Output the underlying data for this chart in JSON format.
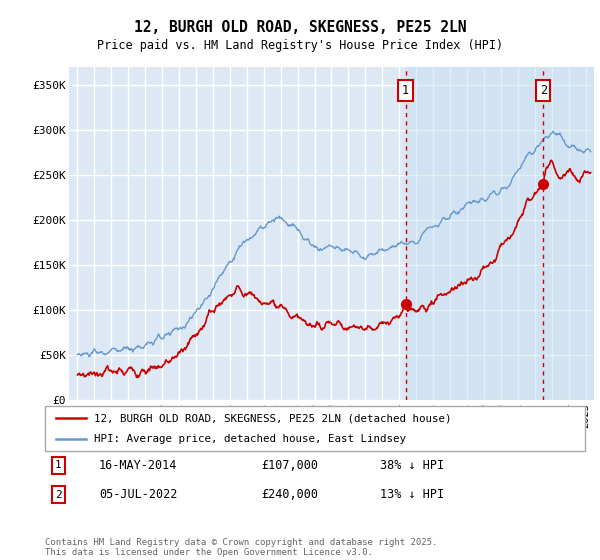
{
  "title": "12, BURGH OLD ROAD, SKEGNESS, PE25 2LN",
  "subtitle": "Price paid vs. HM Land Registry's House Price Index (HPI)",
  "ylabel_ticks": [
    "£0",
    "£50K",
    "£100K",
    "£150K",
    "£200K",
    "£250K",
    "£300K",
    "£350K"
  ],
  "ytick_values": [
    0,
    50000,
    100000,
    150000,
    200000,
    250000,
    300000,
    350000
  ],
  "ylim": [
    0,
    370000
  ],
  "xlim_start": 1994.5,
  "xlim_end": 2025.5,
  "transaction1": {
    "date_label": "16-MAY-2014",
    "price": 107000,
    "year": 2014.37,
    "label": "1",
    "pct": "38% ↓ HPI"
  },
  "transaction2": {
    "date_label": "05-JUL-2022",
    "price": 240000,
    "year": 2022.51,
    "label": "2",
    "pct": "13% ↓ HPI"
  },
  "legend_line1": "12, BURGH OLD ROAD, SKEGNESS, PE25 2LN (detached house)",
  "legend_line2": "HPI: Average price, detached house, East Lindsey",
  "footer": "Contains HM Land Registry data © Crown copyright and database right 2025.\nThis data is licensed under the Open Government Licence v3.0.",
  "line_red_color": "#cc0000",
  "line_blue_color": "#6699cc",
  "bg_color": "#dce9f5",
  "shade_color": "#cde0f0",
  "grid_color": "#ffffff",
  "marker_box_color": "#cc0000",
  "hpi_points": [
    [
      1995.0,
      50000
    ],
    [
      1995.5,
      51000
    ],
    [
      1996.0,
      52000
    ],
    [
      1996.5,
      52500
    ],
    [
      1997.0,
      54000
    ],
    [
      1997.5,
      56000
    ],
    [
      1998.0,
      57000
    ],
    [
      1998.5,
      59000
    ],
    [
      1999.0,
      62000
    ],
    [
      1999.5,
      65000
    ],
    [
      2000.0,
      69000
    ],
    [
      2000.5,
      74000
    ],
    [
      2001.0,
      80000
    ],
    [
      2001.5,
      87000
    ],
    [
      2002.0,
      97000
    ],
    [
      2002.5,
      110000
    ],
    [
      2003.0,
      125000
    ],
    [
      2003.5,
      140000
    ],
    [
      2004.0,
      155000
    ],
    [
      2004.5,
      168000
    ],
    [
      2005.0,
      178000
    ],
    [
      2005.5,
      185000
    ],
    [
      2006.0,
      192000
    ],
    [
      2006.5,
      198000
    ],
    [
      2007.0,
      202000
    ],
    [
      2007.5,
      196000
    ],
    [
      2008.0,
      188000
    ],
    [
      2008.5,
      178000
    ],
    [
      2009.0,
      170000
    ],
    [
      2009.5,
      168000
    ],
    [
      2010.0,
      172000
    ],
    [
      2010.5,
      170000
    ],
    [
      2011.0,
      166000
    ],
    [
      2011.5,
      162000
    ],
    [
      2012.0,
      160000
    ],
    [
      2012.5,
      163000
    ],
    [
      2013.0,
      167000
    ],
    [
      2013.5,
      170000
    ],
    [
      2014.0,
      172000
    ],
    [
      2014.5,
      176000
    ],
    [
      2015.0,
      180000
    ],
    [
      2015.5,
      186000
    ],
    [
      2016.0,
      193000
    ],
    [
      2016.5,
      199000
    ],
    [
      2017.0,
      205000
    ],
    [
      2017.5,
      210000
    ],
    [
      2018.0,
      215000
    ],
    [
      2018.5,
      218000
    ],
    [
      2019.0,
      222000
    ],
    [
      2019.5,
      228000
    ],
    [
      2020.0,
      234000
    ],
    [
      2020.5,
      242000
    ],
    [
      2021.0,
      255000
    ],
    [
      2021.5,
      268000
    ],
    [
      2022.0,
      280000
    ],
    [
      2022.5,
      290000
    ],
    [
      2023.0,
      298000
    ],
    [
      2023.5,
      292000
    ],
    [
      2024.0,
      285000
    ],
    [
      2024.5,
      280000
    ],
    [
      2025.0,
      278000
    ]
  ],
  "prop_points": [
    [
      1995.0,
      30000
    ],
    [
      1995.5,
      29000
    ],
    [
      1996.0,
      30000
    ],
    [
      1996.5,
      31000
    ],
    [
      1997.0,
      31500
    ],
    [
      1997.5,
      32000
    ],
    [
      1998.0,
      33000
    ],
    [
      1998.5,
      33500
    ],
    [
      1999.0,
      34000
    ],
    [
      1999.5,
      35000
    ],
    [
      2000.0,
      38000
    ],
    [
      2000.5,
      43000
    ],
    [
      2001.0,
      50000
    ],
    [
      2001.5,
      60000
    ],
    [
      2002.0,
      72000
    ],
    [
      2002.5,
      88000
    ],
    [
      2003.0,
      100000
    ],
    [
      2003.5,
      110000
    ],
    [
      2004.0,
      118000
    ],
    [
      2004.5,
      122000
    ],
    [
      2005.0,
      120000
    ],
    [
      2005.5,
      115000
    ],
    [
      2006.0,
      108000
    ],
    [
      2006.5,
      103000
    ],
    [
      2007.0,
      100000
    ],
    [
      2007.5,
      96000
    ],
    [
      2008.0,
      92000
    ],
    [
      2008.5,
      87000
    ],
    [
      2009.0,
      83000
    ],
    [
      2009.5,
      83000
    ],
    [
      2010.0,
      85000
    ],
    [
      2010.5,
      84000
    ],
    [
      2011.0,
      83000
    ],
    [
      2011.5,
      82000
    ],
    [
      2012.0,
      80000
    ],
    [
      2012.5,
      82000
    ],
    [
      2013.0,
      85000
    ],
    [
      2013.5,
      88000
    ],
    [
      2014.0,
      93000
    ],
    [
      2014.37,
      107000
    ],
    [
      2014.5,
      100000
    ],
    [
      2015.0,
      100000
    ],
    [
      2015.5,
      105000
    ],
    [
      2016.0,
      110000
    ],
    [
      2016.5,
      115000
    ],
    [
      2017.0,
      120000
    ],
    [
      2017.5,
      126000
    ],
    [
      2018.0,
      132000
    ],
    [
      2018.5,
      138000
    ],
    [
      2019.0,
      145000
    ],
    [
      2019.5,
      155000
    ],
    [
      2020.0,
      168000
    ],
    [
      2020.5,
      182000
    ],
    [
      2021.0,
      198000
    ],
    [
      2021.5,
      218000
    ],
    [
      2022.0,
      232000
    ],
    [
      2022.51,
      240000
    ],
    [
      2022.7,
      260000
    ],
    [
      2023.0,
      265000
    ],
    [
      2023.3,
      255000
    ],
    [
      2023.5,
      248000
    ],
    [
      2023.8,
      252000
    ],
    [
      2024.0,
      255000
    ],
    [
      2024.3,
      250000
    ],
    [
      2024.5,
      248000
    ],
    [
      2024.8,
      252000
    ],
    [
      2025.0,
      255000
    ]
  ]
}
